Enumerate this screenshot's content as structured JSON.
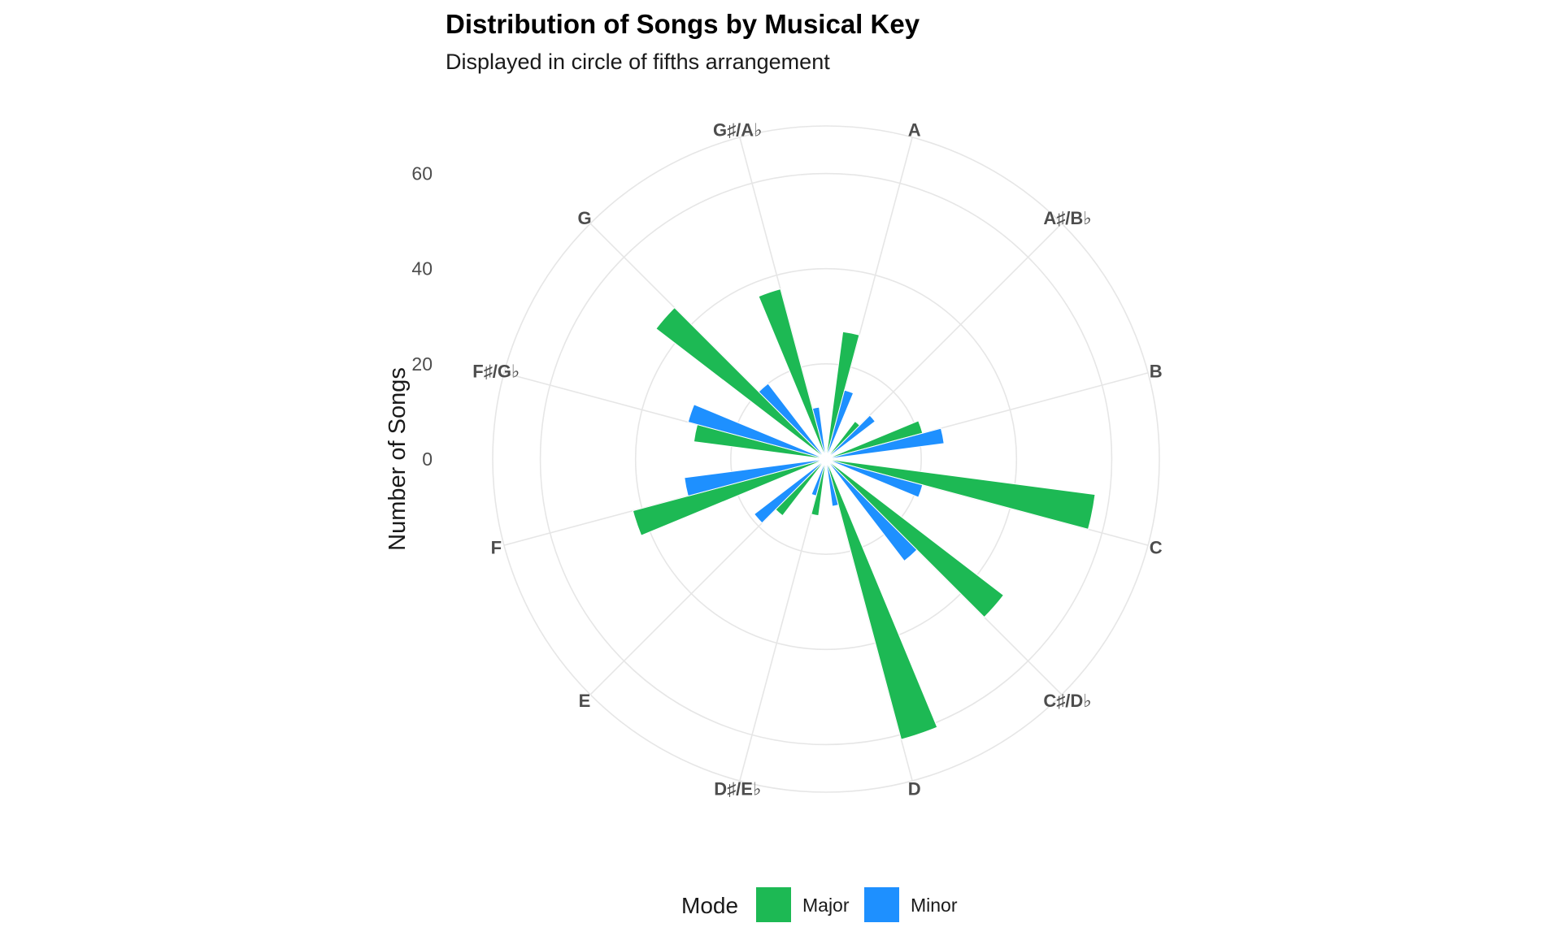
{
  "chart_data": {
    "type": "bar",
    "coord": "polar",
    "title": "Distribution of Songs by Musical Key",
    "subtitle": "Displayed in circle of fifths arrangement",
    "ylabel": "Number of Songs",
    "ylim": [
      0,
      70
    ],
    "radial_ticks": [
      "0",
      "20",
      "40",
      "60"
    ],
    "radial_tick_values": [
      0,
      20,
      40,
      60
    ],
    "categories": [
      "A",
      "A♯/B♭",
      "B",
      "C",
      "C♯/D♭",
      "D",
      "D♯/E♭",
      "E",
      "F",
      "F♯/G♭",
      "G",
      "G♯/A♭"
    ],
    "series": [
      {
        "name": "Major",
        "color": "#1db954",
        "values": [
          27,
          10,
          21,
          57,
          47,
          61,
          12,
          15,
          42,
          28,
          45,
          37
        ]
      },
      {
        "name": "Minor",
        "color": "#1e90ff",
        "values": [
          15,
          13,
          25,
          21,
          27,
          10,
          8,
          19,
          30,
          30,
          20,
          11
        ]
      }
    ],
    "legend": {
      "title": "Mode",
      "position": "bottom"
    }
  }
}
